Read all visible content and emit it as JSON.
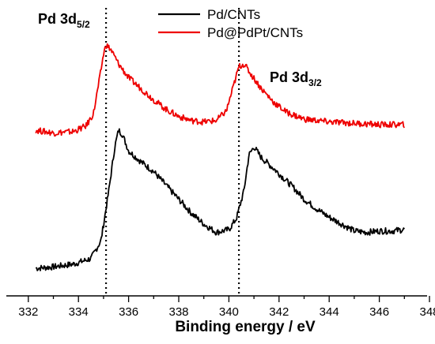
{
  "chart_data": {
    "type": "line",
    "title": "",
    "xlabel": "Binding energy / eV",
    "ylabel": "",
    "xlim": [
      332,
      348.8
    ],
    "x_ticks": [
      332,
      334,
      336,
      338,
      340,
      342,
      344,
      346,
      348
    ],
    "y_axis_shown": false,
    "grid": false,
    "legend_position": "top-center",
    "series": [
      {
        "name": "Pd/CNTs",
        "color": "#000000",
        "x": [
          332.3,
          333.0,
          333.8,
          334.5,
          334.9,
          335.2,
          335.45,
          335.6,
          335.75,
          336.0,
          336.5,
          337.0,
          337.5,
          338.0,
          338.5,
          339.0,
          339.5,
          340.0,
          340.3,
          340.6,
          340.8,
          341.0,
          341.3,
          341.8,
          342.2,
          342.6,
          343.0,
          343.5,
          344.0,
          344.5,
          345.0,
          345.5,
          346.0,
          346.5,
          347.0
        ],
        "y": [
          0.0,
          0.01,
          0.03,
          0.07,
          0.2,
          0.55,
          0.88,
          1.0,
          0.97,
          0.85,
          0.77,
          0.7,
          0.6,
          0.5,
          0.4,
          0.32,
          0.26,
          0.28,
          0.36,
          0.56,
          0.82,
          0.88,
          0.8,
          0.72,
          0.65,
          0.58,
          0.5,
          0.43,
          0.37,
          0.32,
          0.27,
          0.26,
          0.27,
          0.27,
          0.28
        ]
      },
      {
        "name": "Pd@PdPt/CNTs",
        "color": "#ee0000",
        "x": [
          332.3,
          333.0,
          333.8,
          334.3,
          334.6,
          334.85,
          335.0,
          335.1,
          335.3,
          335.6,
          336.0,
          336.5,
          337.0,
          337.5,
          338.0,
          338.5,
          339.0,
          339.5,
          339.9,
          340.2,
          340.4,
          340.6,
          340.9,
          341.3,
          341.8,
          342.3,
          343.0,
          344.0,
          345.0,
          346.0,
          347.0
        ],
        "y": [
          1.0,
          0.98,
          0.99,
          1.03,
          1.12,
          1.38,
          1.55,
          1.62,
          1.58,
          1.48,
          1.38,
          1.3,
          1.22,
          1.15,
          1.1,
          1.07,
          1.06,
          1.07,
          1.14,
          1.33,
          1.46,
          1.48,
          1.4,
          1.3,
          1.2,
          1.13,
          1.08,
          1.06,
          1.05,
          1.04,
          1.04
        ]
      }
    ],
    "reference_lines": [
      335.1,
      340.4
    ],
    "annotations": [
      {
        "main": "Pd 3d",
        "sub": "5/2"
      },
      {
        "main": "Pd 3d",
        "sub": "3/2"
      }
    ]
  }
}
